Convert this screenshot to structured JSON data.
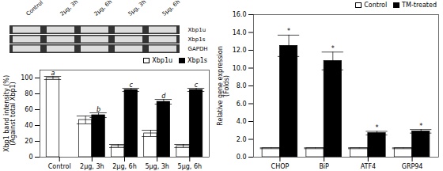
{
  "chart_data": [
    {
      "type": "gel",
      "categories": [
        "Control",
        "2μg, 3h",
        "2μg, 6h",
        "5μg, 3h",
        "5μg, 6h"
      ],
      "annotations": [
        "Xbp1u",
        "Xbp1s",
        "GAPDH"
      ]
    },
    {
      "type": "bar",
      "categories": [
        "Control",
        "2μg, 3h",
        "2μg, 6h",
        "5μg, 3h",
        "5μg, 6h"
      ],
      "series": [
        {
          "name": "Xbp1u",
          "color": "#FFFFFF",
          "values": [
            100,
            47,
            14,
            30,
            14
          ],
          "errors": [
            2,
            5,
            2,
            4,
            2
          ],
          "sig_labels": [
            "a",
            null,
            null,
            null,
            null
          ]
        },
        {
          "name": "Xbp1s",
          "color": "#000000",
          "values": [
            0,
            53,
            85,
            70,
            85
          ],
          "errors": [
            0,
            3,
            2,
            3,
            2
          ],
          "sig_labels": [
            null,
            "b",
            "c",
            "d",
            "c"
          ]
        }
      ],
      "ylim": [
        0,
        110
      ],
      "yticks": [
        0,
        20,
        40,
        60,
        80,
        100
      ],
      "ylabel": "Xbp1 band intensity (%)\n(Against total Xbp1)",
      "legend": "upper right"
    },
    {
      "type": "bar",
      "categories": [
        "CHOP",
        "BiP",
        "ATF4",
        "GRP94"
      ],
      "series": [
        {
          "name": "Control",
          "color": "#FFFFFF",
          "values": [
            1.0,
            1.0,
            1.0,
            1.0
          ],
          "errors": [
            0.05,
            0.05,
            0.05,
            0.05
          ]
        },
        {
          "name": "TM-treated",
          "color": "#000000",
          "values": [
            12.5,
            10.8,
            2.7,
            2.9
          ],
          "errors": [
            1.2,
            1.0,
            0.2,
            0.2
          ],
          "sig_labels": [
            "*",
            "*",
            "*",
            "*"
          ]
        }
      ],
      "ylim": [
        0,
        16.0
      ],
      "yticks": [
        {
          "value": 0,
          "label": "0.0"
        },
        {
          "value": 2,
          "label": "2.0"
        },
        {
          "value": 4,
          "label": "4.0"
        },
        {
          "value": 6,
          "label": "6.0"
        },
        {
          "value": 8,
          "label": "8.0"
        },
        {
          "value": 10,
          "label": "10.0"
        },
        {
          "value": 12,
          "label": "12.0"
        },
        {
          "value": 14,
          "label": "14.0"
        },
        {
          "value": 16,
          "label": "16.0"
        }
      ],
      "ylabel": "Relative gene expression\n(Folds)",
      "legend": "upper right"
    }
  ]
}
